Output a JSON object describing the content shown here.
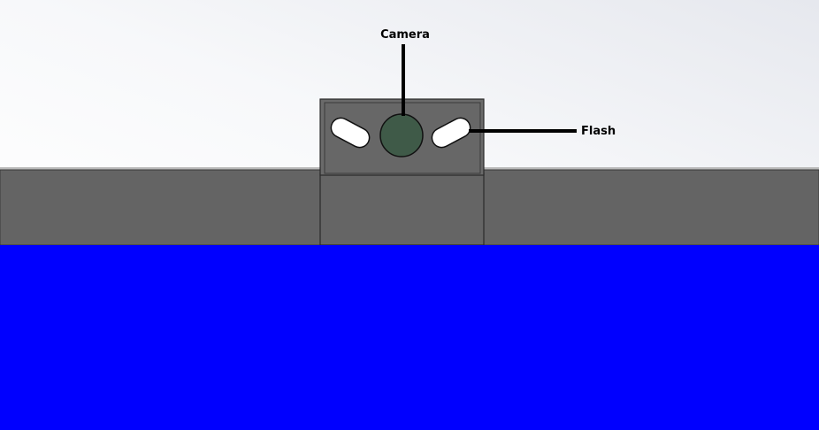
{
  "labels": {
    "camera": "Camera",
    "flash": "Flash"
  },
  "colors": {
    "ground": "#0000ff",
    "body": "#646464",
    "housing": "#666666",
    "outline": "#2a2a2a",
    "lens": "#3f5a48",
    "flash_light": "#ffffff",
    "leader": "#000000"
  }
}
